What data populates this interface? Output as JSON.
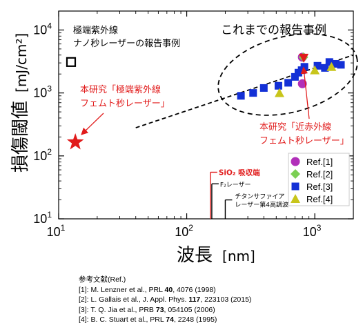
{
  "chart_data": {
    "type": "scatter",
    "xscale": "log",
    "yscale": "log",
    "xlim": [
      10,
      2000
    ],
    "ylim": [
      10,
      20000
    ],
    "xlabel": "波長",
    "xunit": "[nm]",
    "ylabel": "損傷閾値",
    "yunit": "[mJ/cm²]",
    "x_ticks": [
      {
        "value": 10,
        "label": "10",
        "sup": "1"
      },
      {
        "value": 100,
        "label": "10",
        "sup": "2"
      },
      {
        "value": 1000,
        "label": "10",
        "sup": "3"
      }
    ],
    "y_ticks": [
      {
        "value": 10,
        "label": "10",
        "sup": "1"
      },
      {
        "value": 100,
        "label": "10",
        "sup": "2"
      },
      {
        "value": 1000,
        "label": "10",
        "sup": "3"
      },
      {
        "value": 10000,
        "label": "10",
        "sup": "4"
      }
    ],
    "series": [
      {
        "name": "Ref.[1]",
        "marker": "circle",
        "color": "#b12fb9",
        "points": [
          [
            800,
            3700
          ],
          [
            800,
            1400
          ]
        ]
      },
      {
        "name": "Ref.[2]",
        "marker": "diamond",
        "color": "#7ccf54",
        "points": [
          [
            815,
            3700
          ]
        ]
      },
      {
        "name": "Ref.[3]",
        "marker": "square",
        "color": "#1330d6",
        "points": [
          [
            265,
            900
          ],
          [
            330,
            1000
          ],
          [
            400,
            1200
          ],
          [
            520,
            1300
          ],
          [
            620,
            1450
          ],
          [
            700,
            1800
          ],
          [
            745,
            2100
          ],
          [
            790,
            2300
          ],
          [
            830,
            2600
          ],
          [
            1050,
            2700
          ],
          [
            1200,
            2500
          ],
          [
            1300,
            3100
          ],
          [
            1450,
            2900
          ],
          [
            1600,
            2800
          ]
        ]
      },
      {
        "name": "Ref.[4]",
        "marker": "triangle",
        "color": "#c8c51b",
        "points": [
          [
            530,
            1000
          ],
          [
            1000,
            2300
          ],
          [
            1350,
            2600
          ]
        ]
      }
    ],
    "this_work": [
      {
        "label": "本研究「極端紫外線\nフェムト秒レーザー」",
        "x": 13.5,
        "y": 165,
        "marker": "star",
        "color": "#e11b1b"
      },
      {
        "label": "本研究「近赤外線\nフェムト秒レーザー」",
        "x": 820,
        "y": 3600,
        "marker": "triangle-down",
        "color": "#e11b1b"
      }
    ],
    "euv_ns_point": {
      "label": "極端紫外線\nナノ秒レーザーの報告事例",
      "x": 12.5,
      "y": 3100,
      "marker": "open-square"
    },
    "trend_line": {
      "x": [
        40,
        2000
      ],
      "y": [
        280,
        4000
      ]
    },
    "reports_region_label": "これまでの報告事例",
    "vertical_markers": [
      {
        "label": "SiO₂ 吸収端",
        "x": 153,
        "color": "#e11b1b",
        "top_y": 55
      },
      {
        "label": "F₂レーザー",
        "x": 157,
        "color": "#000000",
        "top_y": 36
      },
      {
        "label": "チタンサファイア\nレーザー第4高調波",
        "x": 200,
        "color": "#000000",
        "top_y": 20
      }
    ],
    "legend_placement": "inside lower-right",
    "grid": false
  },
  "references": {
    "title": "参考文献(Ref.)",
    "items": [
      {
        "pre": "[1]: M. Lenzner et al., PRL ",
        "vol": "40",
        "post": ", 4076 (1998)"
      },
      {
        "pre": "[2]: L. Gallais et al., J. Appl. Phys. ",
        "vol": "117",
        "post": ", 223103 (2015)"
      },
      {
        "pre": "[3]: T. Q. Jia et al., PRB ",
        "vol": "73",
        "post": ", 054105 (2006)"
      },
      {
        "pre": "[4]: B. C. Stuart et al., PRL ",
        "vol": "74",
        "post": ", 2248 (1995)"
      }
    ]
  }
}
